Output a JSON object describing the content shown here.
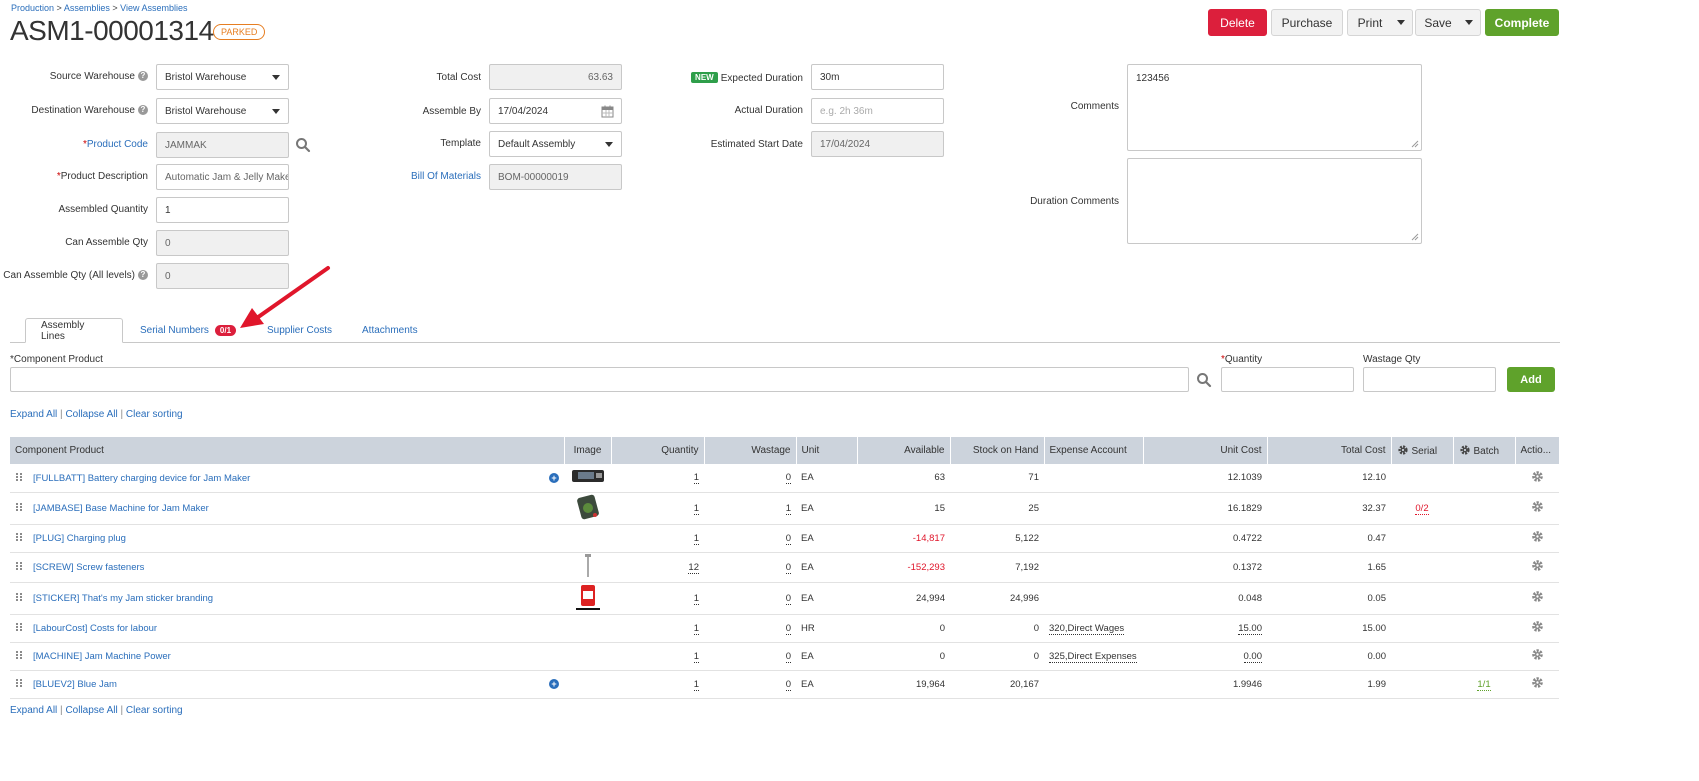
{
  "breadcrumb": {
    "production": "Production",
    "assemblies": "Assemblies",
    "view": "View Assemblies",
    "sep": ">"
  },
  "title": "ASM1-00001314",
  "status": "PARKED",
  "toolbar": {
    "delete": "Delete",
    "purchase": "Purchase",
    "print": "Print",
    "save": "Save",
    "complete": "Complete"
  },
  "form": {
    "source_warehouse": {
      "label": "Source Warehouse",
      "value": "Bristol Warehouse"
    },
    "destination_warehouse": {
      "label": "Destination Warehouse",
      "value": "Bristol Warehouse"
    },
    "product_code": {
      "label": "Product Code",
      "value": "JAMMAK"
    },
    "product_description": {
      "label": "Product Description",
      "value": "Automatic Jam & Jelly Maker"
    },
    "assembled_quantity": {
      "label": "Assembled Quantity",
      "value": "1"
    },
    "can_assemble_qty": {
      "label": "Can Assemble Qty",
      "value": "0"
    },
    "can_assemble_all": {
      "label": "Can Assemble Qty (All levels)",
      "value": "0"
    },
    "total_cost": {
      "label": "Total Cost",
      "value": "63.63"
    },
    "assemble_by": {
      "label": "Assemble By",
      "value": "17/04/2024"
    },
    "template": {
      "label": "Template",
      "value": "Default Assembly"
    },
    "bill_of_materials": {
      "label": "Bill Of Materials",
      "value": "BOM-00000019"
    },
    "expected_duration": {
      "badge": "NEW",
      "label": "Expected Duration",
      "value": "30m"
    },
    "actual_duration": {
      "label": "Actual Duration",
      "placeholder": "e.g. 2h 36m"
    },
    "estimated_start": {
      "label": "Estimated Start Date",
      "value": "17/04/2024"
    },
    "comments": {
      "label": "Comments",
      "value": "123456"
    },
    "duration_comments": {
      "label": "Duration Comments",
      "value": ""
    }
  },
  "tabs": [
    {
      "label": "Assembly Lines"
    },
    {
      "label": "Serial Numbers",
      "badge": "0/1"
    },
    {
      "label": "Supplier Costs"
    },
    {
      "label": "Attachments"
    }
  ],
  "add_line": {
    "component_label": "Component Product",
    "quantity_label": "Quantity",
    "wastage_label": "Wastage Qty",
    "add_button": "Add"
  },
  "links": {
    "expand": "Expand All",
    "collapse": "Collapse All",
    "clear": "Clear sorting",
    "sep": "|"
  },
  "table": {
    "headers": [
      "Component Product",
      "Image",
      "Quantity",
      "Wastage",
      "Unit",
      "Available",
      "Stock on Hand",
      "Expense Account",
      "Unit Cost",
      "Total Cost",
      "Serial",
      "Batch",
      "Actio..."
    ],
    "rows": [
      {
        "product": "[FULLBATT] Battery charging device for Jam Maker",
        "plus": true,
        "image": "battery",
        "quantity": "1",
        "wastage": "0",
        "unit": "EA",
        "available": "63",
        "soh": "71",
        "expense": "",
        "unit_cost": "12.1039",
        "total_cost": "12.10",
        "serial": "",
        "batch": ""
      },
      {
        "product": "[JAMBASE] Base Machine for Jam Maker",
        "plus": false,
        "image": "machine",
        "quantity": "1",
        "wastage": "1",
        "unit": "EA",
        "available": "15",
        "soh": "25",
        "expense": "",
        "unit_cost": "16.1829",
        "total_cost": "32.37",
        "serial": "0/2",
        "batch": ""
      },
      {
        "product": "[PLUG] Charging plug",
        "plus": false,
        "image": "",
        "quantity": "1",
        "wastage": "0",
        "unit": "EA",
        "available": "-14,817",
        "soh": "5,122",
        "expense": "",
        "unit_cost": "0.4722",
        "total_cost": "0.47",
        "serial": "",
        "batch": ""
      },
      {
        "product": "[SCREW] Screw fasteners",
        "plus": false,
        "image": "screw",
        "quantity": "12",
        "wastage": "0",
        "unit": "EA",
        "available": "-152,293",
        "soh": "7,192",
        "expense": "",
        "unit_cost": "0.1372",
        "total_cost": "1.65",
        "serial": "",
        "batch": ""
      },
      {
        "product": "[STICKER] That's my Jam sticker branding",
        "plus": false,
        "image": "sticker",
        "quantity": "1",
        "wastage": "0",
        "unit": "EA",
        "available": "24,994",
        "soh": "24,996",
        "expense": "",
        "unit_cost": "0.048",
        "total_cost": "0.05",
        "serial": "",
        "batch": ""
      },
      {
        "product": "[LabourCost] Costs for labour",
        "plus": false,
        "image": "",
        "quantity": "1",
        "wastage": "0",
        "unit": "HR",
        "available": "0",
        "soh": "0",
        "expense": "320,Direct Wages",
        "unit_cost": "15.00",
        "total_cost": "15.00",
        "serial": "",
        "batch": ""
      },
      {
        "product": "[MACHINE] Jam Machine Power",
        "plus": false,
        "image": "",
        "quantity": "1",
        "wastage": "0",
        "unit": "EA",
        "available": "0",
        "soh": "0",
        "expense": "325,Direct Expenses",
        "unit_cost": "0.00",
        "total_cost": "0.00",
        "serial": "",
        "batch": ""
      },
      {
        "product": "[BLUEV2] Blue Jam",
        "plus": true,
        "image": "",
        "quantity": "1",
        "wastage": "0",
        "unit": "EA",
        "available": "19,964",
        "soh": "20,167",
        "expense": "",
        "unit_cost": "1.9946",
        "total_cost": "1.99",
        "serial": "",
        "batch": "1/1"
      }
    ]
  },
  "colors": {
    "primary_link": "#2a6ebb",
    "delete": "#dc1f3c",
    "complete": "#5fa22b",
    "status": "#e67e22",
    "negative": "#e0162b",
    "annotation_arrow": "#e0162b"
  }
}
